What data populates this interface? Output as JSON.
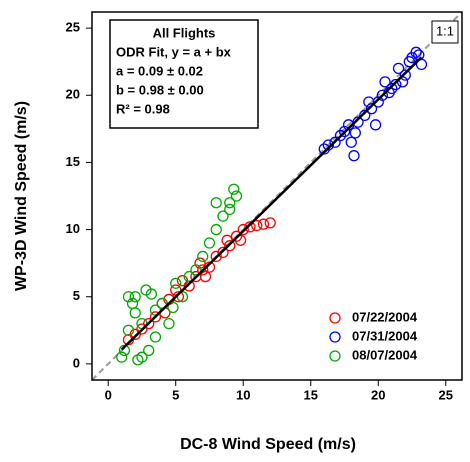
{
  "chart_data": {
    "type": "scatter",
    "xlabel": "DC-8 Wind Speed (m/s)",
    "ylabel": "WP-3D Wind Speed (m/s)",
    "xlim": [
      -1.2,
      26.2
    ],
    "ylim": [
      -1.2,
      26.2
    ],
    "xticks": [
      0,
      5,
      10,
      15,
      20,
      25
    ],
    "yticks": [
      0,
      5,
      10,
      15,
      20,
      25
    ],
    "series": [
      {
        "name": "07/22/2004",
        "color": "#ff0000",
        "x": [
          1.5,
          2,
          2.5,
          3,
          3.5,
          4,
          4.5,
          5,
          5.5,
          6,
          6.5,
          7,
          7.5,
          8,
          8.5,
          9,
          9.5,
          10,
          10.5,
          11,
          11.5,
          12,
          4.2,
          6.8,
          8.8,
          9.8,
          5.2,
          7.2
        ],
        "values": [
          1.8,
          2.2,
          2.6,
          3,
          3.5,
          4.5,
          4.8,
          5.5,
          6.2,
          5.8,
          6.5,
          7,
          7.2,
          8,
          8.3,
          8.8,
          9.5,
          10,
          10.2,
          10.3,
          10.4,
          10.5,
          3.8,
          7.5,
          9.2,
          9.2,
          5,
          6.5
        ]
      },
      {
        "name": "07/31/2004",
        "color": "#0000ff",
        "x": [
          16,
          16.3,
          16.8,
          17.2,
          17.5,
          18,
          18.2,
          18.5,
          19,
          19.3,
          19.5,
          20,
          20.3,
          20.5,
          21,
          21.3,
          21.5,
          22,
          22.3,
          22.5,
          23,
          23.2,
          18.3,
          19.8,
          21.8,
          20.8,
          17.8,
          22.8
        ],
        "values": [
          16,
          16.3,
          16.5,
          17,
          17.3,
          16.5,
          15.5,
          18,
          18.5,
          19.5,
          19,
          19.5,
          20,
          21,
          20.5,
          20.8,
          22,
          21.5,
          22.5,
          22.8,
          23,
          22.3,
          17.2,
          17.8,
          21,
          20.2,
          17.8,
          23.2
        ]
      },
      {
        "name": "08/07/2004",
        "color": "#00aa00",
        "x": [
          1,
          1.2,
          1.5,
          1.8,
          2,
          2.2,
          2.5,
          2.8,
          3,
          3.2,
          3.5,
          4,
          4.5,
          5,
          5.5,
          6,
          6.5,
          7,
          7.5,
          8,
          8.5,
          9,
          9.3,
          9.5,
          1.5,
          2.5,
          3.5,
          2,
          4.8,
          8,
          9
        ],
        "values": [
          0.5,
          1,
          2.5,
          4.5,
          5,
          0.3,
          3,
          5.5,
          1,
          5.2,
          4,
          4.5,
          3,
          6,
          5,
          6.5,
          7,
          8,
          9,
          10,
          11,
          12,
          13,
          12.5,
          5,
          0.5,
          2,
          3.8,
          4.2,
          12,
          11.5
        ]
      }
    ],
    "fit": {
      "a": 0.09,
      "b": 0.98
    },
    "annotation": [
      "All Flights",
      "ODR Fit, y = a + bx",
      "a = 0.09 ± 0.02",
      "b = 0.98 ± 0.00",
      "R² = 0.98"
    ],
    "one_to_one_label": "1:1",
    "legend": "lower right"
  }
}
